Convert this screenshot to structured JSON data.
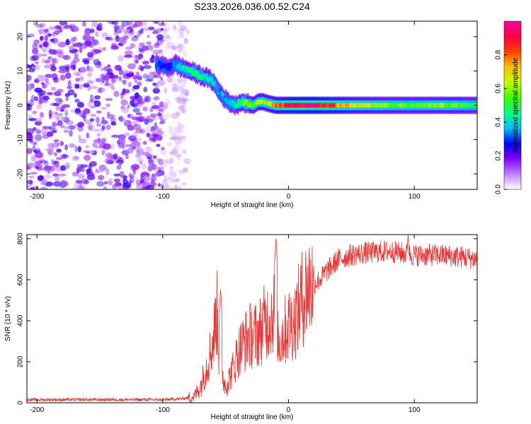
{
  "chart_data": [
    {
      "type": "heatmap",
      "title": "S233.2026.036.00.52.C24",
      "xlabel": "Height of straight line (km)",
      "ylabel": "Frequency (Hz)",
      "xlim": [
        -208,
        150
      ],
      "ylim": [
        -24.5,
        24.5
      ],
      "xticks": [
        -200,
        -100,
        0,
        100
      ],
      "yticks": [
        20,
        10,
        0,
        -10,
        -20
      ],
      "xtick_labels": [
        "-200",
        "-100",
        "0",
        "100"
      ],
      "ytick_labels": [
        "20",
        "10",
        "0",
        "-10",
        "-20"
      ],
      "noise_region_x": [
        -208,
        -80
      ],
      "ridge": {
        "x": [
          -105,
          -95,
          -90,
          -85,
          -78,
          -72,
          -65,
          -60,
          -57,
          -53,
          -48,
          -42,
          -38,
          -33,
          -28,
          -24,
          -20,
          -16,
          -10,
          -5,
          0,
          10,
          20,
          30,
          50,
          75,
          100,
          125,
          150
        ],
        "y": [
          12,
          11,
          12,
          11,
          10,
          9,
          8,
          7,
          5,
          3,
          1,
          0,
          1,
          0.5,
          0,
          1,
          1,
          0.5,
          0,
          0,
          0,
          0,
          0,
          0,
          0,
          0,
          0,
          0,
          0
        ],
        "amplitude": [
          0.3,
          0.25,
          0.35,
          0.4,
          0.45,
          0.5,
          0.45,
          0.4,
          0.35,
          0.35,
          0.35,
          0.4,
          0.5,
          0.6,
          0.55,
          0.6,
          0.7,
          0.6,
          0.8,
          0.85,
          0.9,
          0.95,
          0.95,
          0.9,
          0.7,
          0.6,
          0.55,
          0.6,
          0.5
        ]
      },
      "colorbar": {
        "label": "Normalized spectral amplitude",
        "range": [
          0,
          1
        ],
        "ticks": [
          0.0,
          0.2,
          0.4,
          0.6,
          0.8
        ],
        "tick_labels": [
          "0.0",
          "0.2",
          "0.4",
          "0.6",
          "0.8"
        ],
        "colors": [
          "#ffffff",
          "#c080ff",
          "#8000ff",
          "#0000ff",
          "#00c0ff",
          "#00ff80",
          "#40ff00",
          "#c0ff00",
          "#ffc000",
          "#ff4000",
          "#ff0040",
          "#ff00a0"
        ]
      }
    },
    {
      "type": "line",
      "xlabel": "Height of straight line (km)",
      "ylabel": "SNR (10 * v/v)",
      "xlim": [
        -208,
        150
      ],
      "ylim": [
        0,
        820
      ],
      "xticks": [
        -200,
        -100,
        0,
        100
      ],
      "yticks": [
        0,
        200,
        400,
        600,
        800
      ],
      "xtick_labels": [
        "-200",
        "-100",
        "0",
        "100"
      ],
      "ytick_labels": [
        "0",
        "200",
        "400",
        "600",
        "800"
      ],
      "color": "#ee3333",
      "series": [
        {
          "name": "SNR",
          "x": [
            -208,
            -150,
            -100,
            -85,
            -75,
            -70,
            -65,
            -60,
            -57,
            -55,
            -52,
            -50,
            -45,
            -40,
            -35,
            -30,
            -25,
            -20,
            -15,
            -12,
            -10,
            -8,
            -5,
            0,
            5,
            10,
            15,
            20,
            25,
            30,
            40,
            50,
            60,
            80,
            100,
            120,
            140,
            150
          ],
          "y": [
            15,
            15,
            15,
            20,
            30,
            80,
            180,
            300,
            450,
            200,
            120,
            80,
            150,
            250,
            300,
            330,
            330,
            380,
            420,
            450,
            400,
            300,
            330,
            380,
            400,
            500,
            560,
            580,
            600,
            640,
            700,
            720,
            730,
            740,
            720,
            720,
            710,
            700
          ]
        }
      ],
      "spikes": [
        {
          "x": -54,
          "y": 560
        },
        {
          "x": -10,
          "y": 810
        },
        {
          "x": 95,
          "y": 820
        }
      ]
    }
  ]
}
